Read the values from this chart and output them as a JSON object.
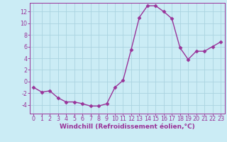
{
  "x": [
    0,
    1,
    2,
    3,
    4,
    5,
    6,
    7,
    8,
    9,
    10,
    11,
    12,
    13,
    14,
    15,
    16,
    17,
    18,
    19,
    20,
    21,
    22,
    23
  ],
  "y": [
    -1,
    -1.8,
    -1.6,
    -2.8,
    -3.5,
    -3.5,
    -3.8,
    -4.2,
    -4.2,
    -3.8,
    -1,
    0.2,
    5.5,
    11.0,
    13.0,
    13.0,
    12.0,
    10.8,
    5.8,
    3.8,
    5.2,
    5.2,
    6.0,
    6.8
  ],
  "line_color": "#993399",
  "marker": "D",
  "markersize": 2.5,
  "linewidth": 1.0,
  "background_color": "#cbecf5",
  "grid_color": "#aad4e0",
  "xlabel": "Windchill (Refroidissement éolien,°C)",
  "xlabel_color": "#993399",
  "tick_color": "#993399",
  "spine_color": "#993399",
  "ylim": [
    -5.5,
    13.5
  ],
  "yticks": [
    -4,
    -2,
    0,
    2,
    4,
    6,
    8,
    10,
    12
  ],
  "xticks": [
    0,
    1,
    2,
    3,
    4,
    5,
    6,
    7,
    8,
    9,
    10,
    11,
    12,
    13,
    14,
    15,
    16,
    17,
    18,
    19,
    20,
    21,
    22,
    23
  ],
  "xlabel_fontsize": 6.5,
  "tick_fontsize": 5.8,
  "xlim": [
    -0.5,
    23.5
  ]
}
